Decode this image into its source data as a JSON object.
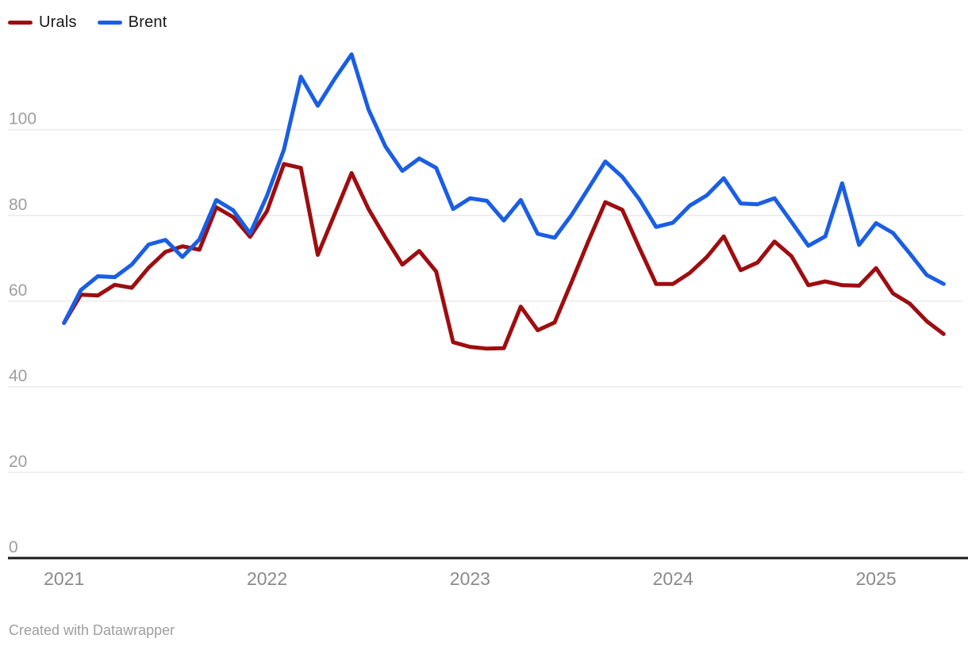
{
  "footer": {
    "attribution": "Created with Datawrapper"
  },
  "colors": {
    "urals": "#9e0d10",
    "brent": "#1a5ee3",
    "grid_line": "#e9e9e9",
    "axis_line": "#1a1a1a",
    "y_tick_text": "#9e9e9e",
    "x_tick_text": "#8a8a8a",
    "footer_text": "#9e9e9e",
    "legend_text": "#191919"
  },
  "chart_data": {
    "type": "line",
    "title": "",
    "xlabel": "",
    "ylabel": "",
    "x_unit": "month",
    "x_start": "2021-01",
    "x_end": "2025-05",
    "grid": "horizontal",
    "legend_position": "top-left",
    "ylim": [
      0,
      121
    ],
    "y_ticks": [
      0,
      20,
      40,
      60,
      80,
      100
    ],
    "x_ticks": [
      {
        "label": "2021",
        "month_index": 0
      },
      {
        "label": "2022",
        "month_index": 12
      },
      {
        "label": "2023",
        "month_index": 24
      },
      {
        "label": "2024",
        "month_index": 36
      },
      {
        "label": "2025",
        "month_index": 48
      }
    ],
    "series": [
      {
        "name": "Urals",
        "color": "#9e0d10",
        "values": [
          54.9,
          61.5,
          61.3,
          63.8,
          63.1,
          67.8,
          71.5,
          72.8,
          72.0,
          81.9,
          79.6,
          75.0,
          81.0,
          92.0,
          91.1,
          70.8,
          80.3,
          89.9,
          81.5,
          74.8,
          68.5,
          71.7,
          66.9,
          50.4,
          49.3,
          48.9,
          49.0,
          58.7,
          53.2,
          55.0,
          64.4,
          74.0,
          83.1,
          81.3,
          72.5,
          64.0,
          64.0,
          66.6,
          70.3,
          75.1,
          67.2,
          69.0,
          73.9,
          70.5,
          63.7,
          64.6,
          63.7,
          63.6,
          67.7,
          61.8,
          59.4,
          55.3,
          52.3
        ]
      },
      {
        "name": "Brent",
        "color": "#1a5ee3",
        "values": [
          54.9,
          62.6,
          65.8,
          65.6,
          68.5,
          73.2,
          74.3,
          70.3,
          74.4,
          83.6,
          81.2,
          75.8,
          84.6,
          95.4,
          112.4,
          105.6,
          111.9,
          117.6,
          104.7,
          96.1,
          90.4,
          93.3,
          91.1,
          81.5,
          84.0,
          83.4,
          78.8,
          83.6,
          75.7,
          74.8,
          80.1,
          86.3,
          92.6,
          89.0,
          83.8,
          77.3,
          78.3,
          82.3,
          84.7,
          88.7,
          82.8,
          82.6,
          84.0,
          78.5,
          72.9,
          75.1,
          87.5,
          73.1,
          78.2,
          75.9,
          71.1,
          66.1,
          64.0
        ]
      }
    ]
  }
}
